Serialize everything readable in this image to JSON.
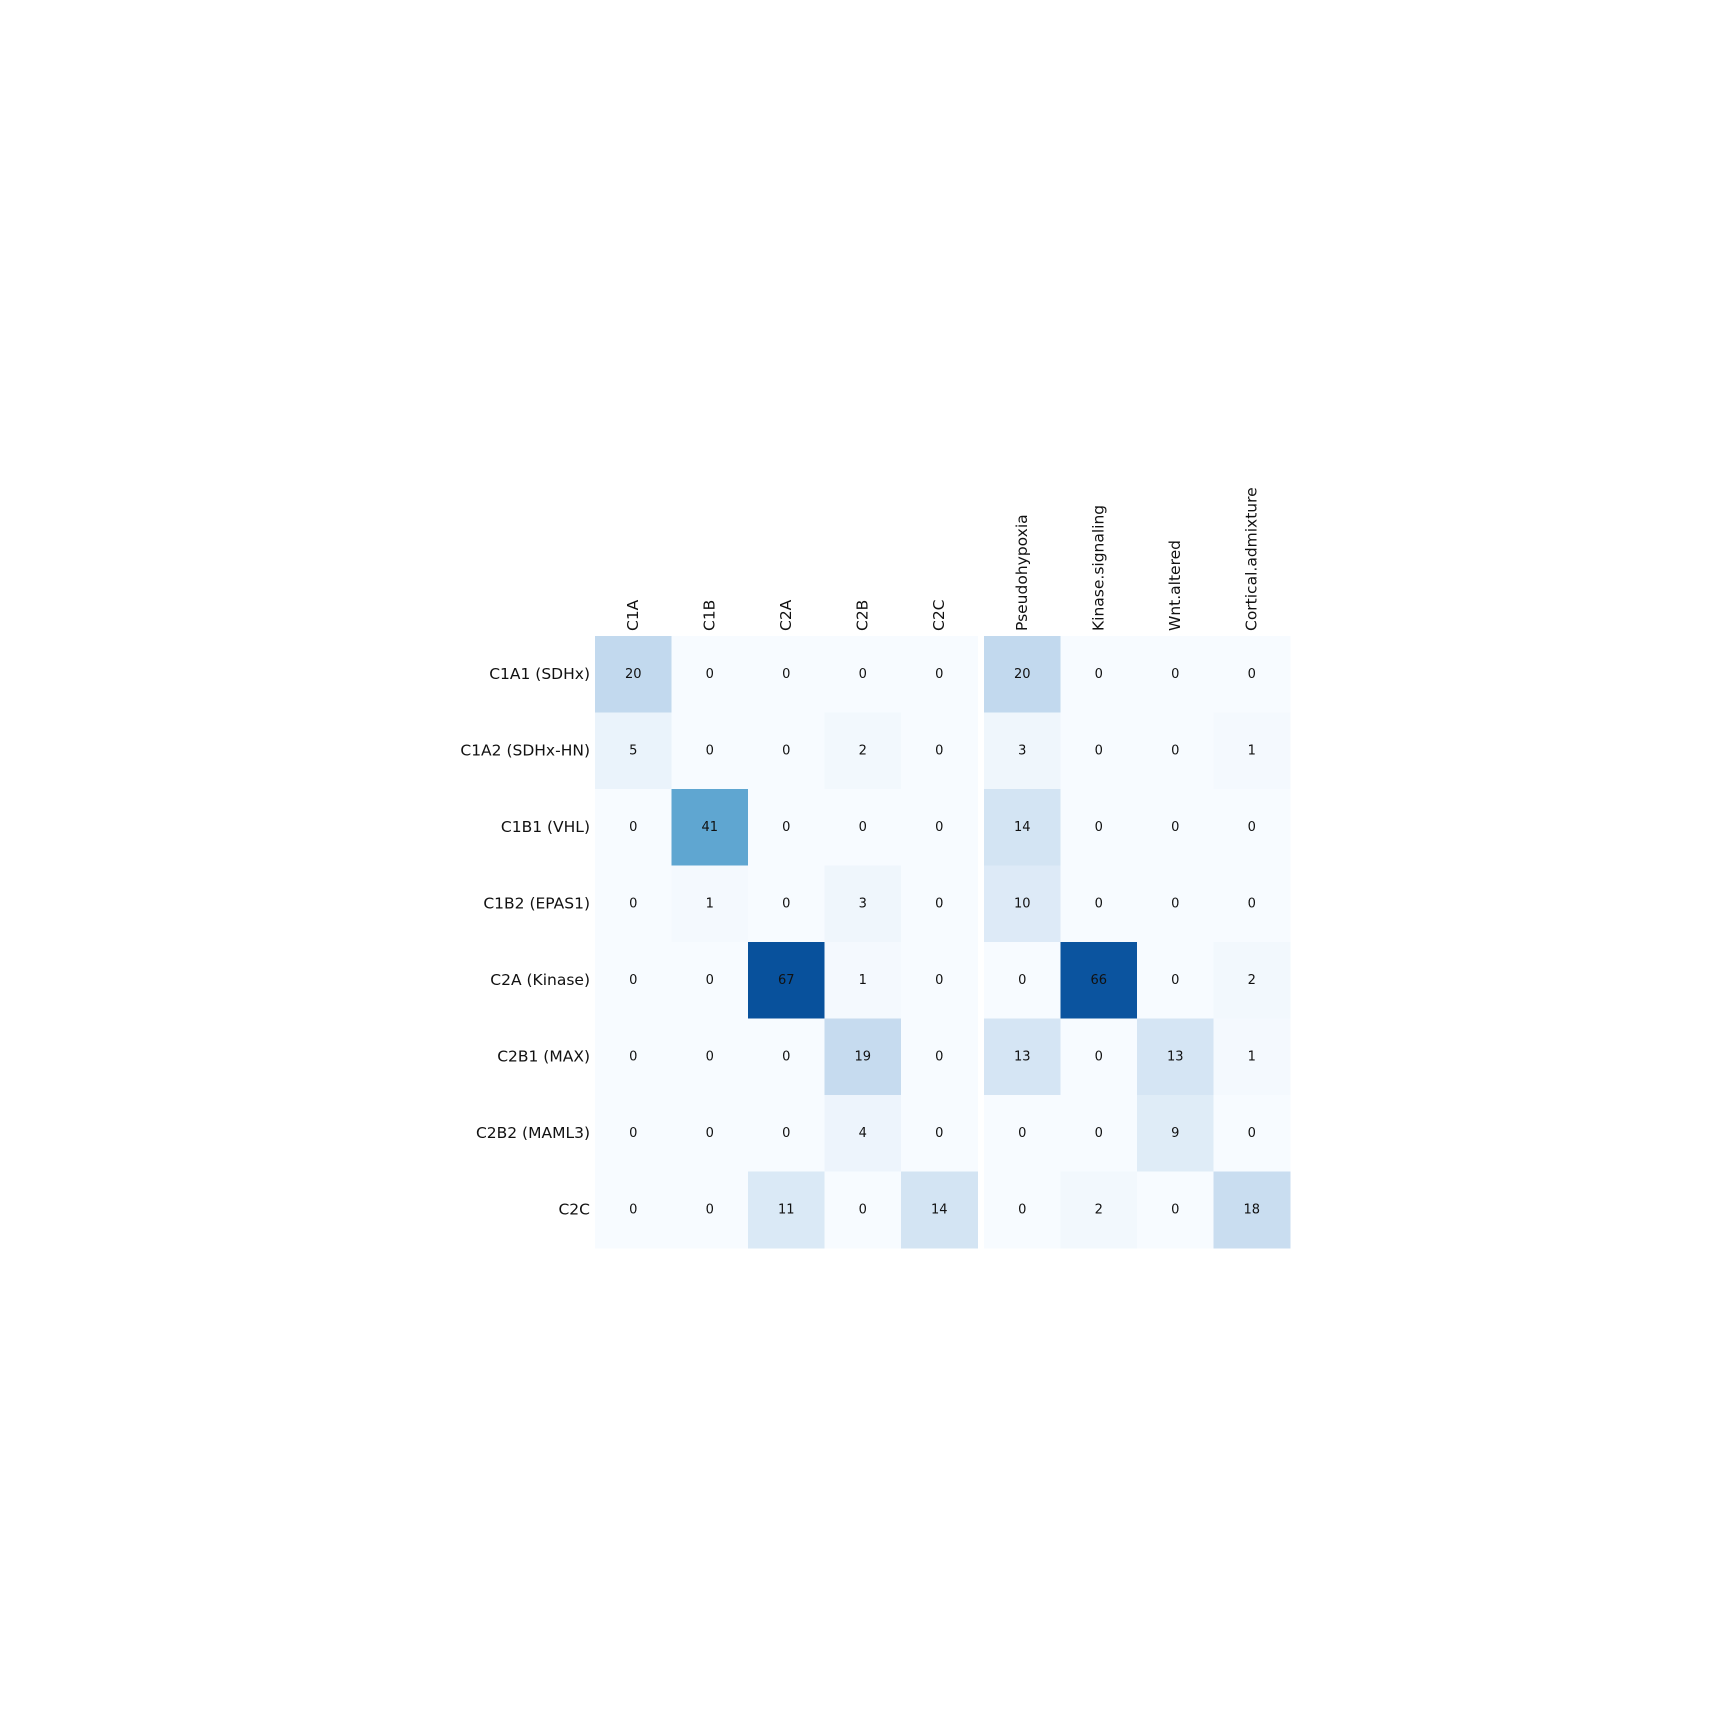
{
  "chart_data": {
    "type": "heatmap",
    "title": "",
    "xlabel": "",
    "ylabel": "",
    "colormap": "Blues",
    "value_range": [
      0,
      67
    ],
    "color_scale": [
      "#f7fbff",
      "#deebf7",
      "#c6dbef",
      "#9ecae1",
      "#6baed6",
      "#4292c6",
      "#2171b5",
      "#08519c"
    ],
    "rows": [
      "C1A1 (SDHx)",
      "C1A2 (SDHx-HN)",
      "C1B1 (VHL)",
      "C1B2 (EPAS1)",
      "C2A (Kinase)",
      "C2B1 (MAX)",
      "C2B2 (MAML3)",
      "C2C"
    ],
    "column_groups": [
      {
        "columns": [
          "C1A",
          "C1B",
          "C2A",
          "C2B",
          "C2C"
        ],
        "values": [
          [
            20,
            0,
            0,
            0,
            0
          ],
          [
            5,
            0,
            0,
            2,
            0
          ],
          [
            0,
            41,
            0,
            0,
            0
          ],
          [
            0,
            1,
            0,
            3,
            0
          ],
          [
            0,
            0,
            67,
            1,
            0
          ],
          [
            0,
            0,
            0,
            19,
            0
          ],
          [
            0,
            0,
            0,
            4,
            0
          ],
          [
            0,
            0,
            11,
            0,
            14
          ]
        ]
      },
      {
        "columns": [
          "Pseudohypoxia",
          "Kinase.signaling",
          "Wnt.altered",
          "Cortical.admixture"
        ],
        "values": [
          [
            20,
            0,
            0,
            0
          ],
          [
            3,
            0,
            0,
            1
          ],
          [
            14,
            0,
            0,
            0
          ],
          [
            10,
            0,
            0,
            0
          ],
          [
            0,
            66,
            0,
            2
          ],
          [
            13,
            0,
            13,
            1
          ],
          [
            0,
            0,
            9,
            0
          ],
          [
            0,
            2,
            0,
            18
          ]
        ]
      }
    ]
  }
}
